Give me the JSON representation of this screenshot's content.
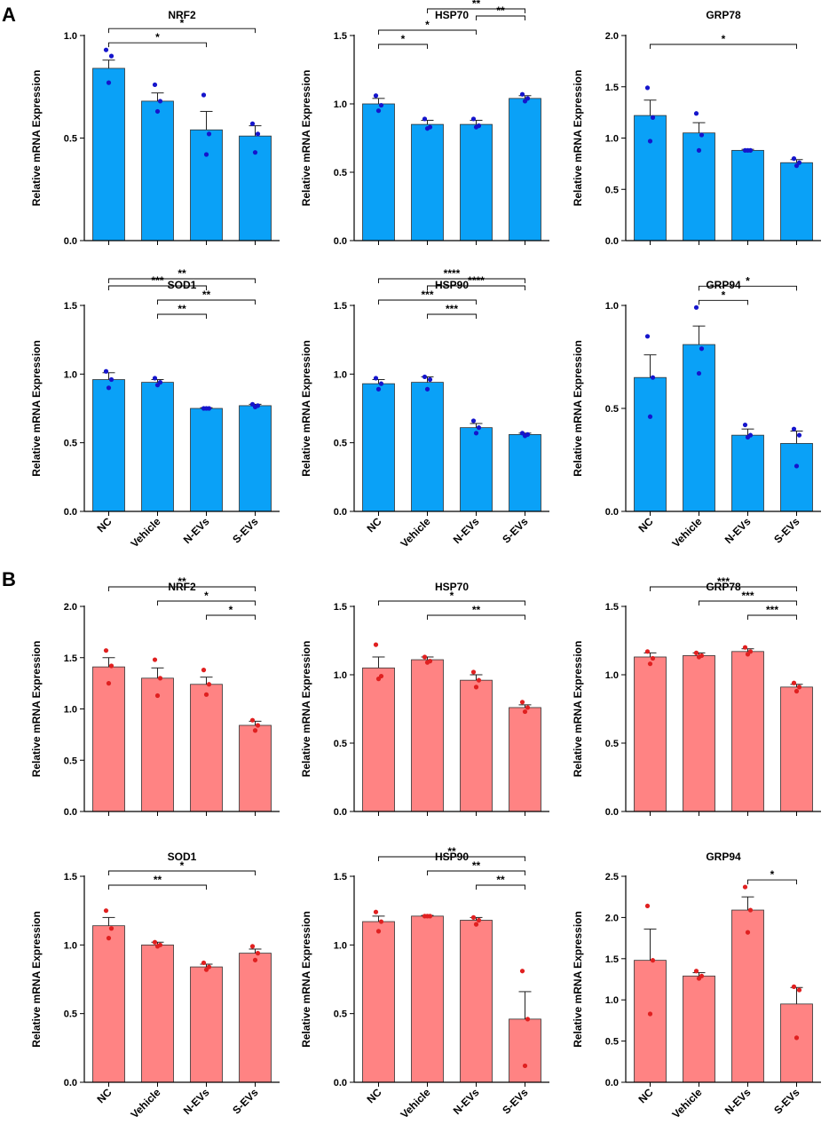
{
  "panel_labels": [
    "A",
    "B"
  ],
  "colors": {
    "A_bar": "#0aa1f7",
    "A_dot": "#1515cc",
    "B_bar": "#ff8383",
    "B_dot": "#e02020",
    "edge": "#333333"
  },
  "chart_data": [
    {
      "panel": "A",
      "type": "bar",
      "title": "NRF2",
      "ylabel": "Relative mRNA Expression",
      "ylim": [
        0,
        1.0
      ],
      "yticks": [
        "0.0",
        "0.5",
        "1.0"
      ],
      "categories": [
        "NC",
        "Vehicle",
        "N-EVs",
        "S-EVs"
      ],
      "show_xlabels": false,
      "values": [
        0.84,
        0.68,
        0.54,
        0.51
      ],
      "errors": [
        0.04,
        0.04,
        0.09,
        0.05
      ],
      "points": [
        [
          0.93,
          0.9,
          0.77
        ],
        [
          0.76,
          0.68,
          0.63
        ],
        [
          0.71,
          0.52,
          0.42
        ],
        [
          0.57,
          0.52,
          0.43
        ]
      ],
      "sig": [
        {
          "a": 0,
          "b": 2,
          "label": "*"
        },
        {
          "a": 0,
          "b": 3,
          "label": "*"
        }
      ]
    },
    {
      "panel": "A",
      "type": "bar",
      "title": "HSP70",
      "ylabel": "Relative mRNA Expression",
      "ylim": [
        0,
        1.5
      ],
      "yticks": [
        "0.0",
        "0.5",
        "1.0",
        "1.5"
      ],
      "categories": [
        "NC",
        "Vehicle",
        "N-EVs",
        "S-EVs"
      ],
      "show_xlabels": false,
      "values": [
        1.0,
        0.85,
        0.85,
        1.04
      ],
      "errors": [
        0.04,
        0.03,
        0.03,
        0.02
      ],
      "points": [
        [
          1.06,
          0.99,
          0.95
        ],
        [
          0.89,
          0.83,
          0.82
        ],
        [
          0.89,
          0.84,
          0.83
        ],
        [
          1.07,
          1.04,
          1.02
        ]
      ],
      "sig": [
        {
          "a": 0,
          "b": 1,
          "label": "*"
        },
        {
          "a": 0,
          "b": 2,
          "label": "*"
        },
        {
          "a": 2,
          "b": 3,
          "label": "**"
        },
        {
          "a": 1,
          "b": 3,
          "label": "**"
        }
      ]
    },
    {
      "panel": "A",
      "type": "bar",
      "title": "GRP78",
      "ylabel": "Relative mRNA Expression",
      "ylim": [
        0,
        2.0
      ],
      "yticks": [
        "0.0",
        "0.5",
        "1.0",
        "1.5",
        "2.0"
      ],
      "categories": [
        "NC",
        "Vehicle",
        "N-EVs",
        "S-EVs"
      ],
      "show_xlabels": false,
      "values": [
        1.22,
        1.05,
        0.88,
        0.76
      ],
      "errors": [
        0.15,
        0.1,
        0.01,
        0.03
      ],
      "points": [
        [
          1.49,
          1.2,
          0.97
        ],
        [
          1.24,
          1.03,
          0.88
        ],
        [
          0.88,
          0.88,
          0.88
        ],
        [
          0.8,
          0.76,
          0.73
        ]
      ],
      "sig": [
        {
          "a": 0,
          "b": 3,
          "label": "*"
        }
      ]
    },
    {
      "panel": "A",
      "type": "bar",
      "title": "SOD1",
      "ylabel": "Relative mRNA Expression",
      "ylim": [
        0,
        1.5
      ],
      "yticks": [
        "0.0",
        "0.5",
        "1.0",
        "1.5"
      ],
      "categories": [
        "NC",
        "Vehicle",
        "N-EVs",
        "S-EVs"
      ],
      "show_xlabels": true,
      "values": [
        0.96,
        0.94,
        0.75,
        0.77
      ],
      "errors": [
        0.05,
        0.02,
        0.005,
        0.01
      ],
      "points": [
        [
          1.02,
          0.96,
          0.9
        ],
        [
          0.97,
          0.94,
          0.92
        ],
        [
          0.75,
          0.75,
          0.75
        ],
        [
          0.78,
          0.77,
          0.76
        ]
      ],
      "sig": [
        {
          "a": 1,
          "b": 2,
          "label": "**"
        },
        {
          "a": 1,
          "b": 3,
          "label": "**"
        },
        {
          "a": 0,
          "b": 2,
          "label": "***"
        },
        {
          "a": 0,
          "b": 3,
          "label": "**"
        }
      ]
    },
    {
      "panel": "A",
      "type": "bar",
      "title": "HSP90",
      "ylabel": "Relative mRNA Expression",
      "ylim": [
        0,
        1.5
      ],
      "yticks": [
        "0.0",
        "0.5",
        "1.0",
        "1.5"
      ],
      "categories": [
        "NC",
        "Vehicle",
        "N-EVs",
        "S-EVs"
      ],
      "show_xlabels": true,
      "values": [
        0.93,
        0.94,
        0.61,
        0.56
      ],
      "errors": [
        0.03,
        0.04,
        0.03,
        0.01
      ],
      "points": [
        [
          0.97,
          0.93,
          0.89
        ],
        [
          0.98,
          0.96,
          0.89
        ],
        [
          0.66,
          0.61,
          0.57
        ],
        [
          0.57,
          0.56,
          0.55
        ]
      ],
      "sig": [
        {
          "a": 1,
          "b": 2,
          "label": "***"
        },
        {
          "a": 0,
          "b": 2,
          "label": "***"
        },
        {
          "a": 1,
          "b": 3,
          "label": "****"
        },
        {
          "a": 0,
          "b": 3,
          "label": "****"
        }
      ]
    },
    {
      "panel": "A",
      "type": "bar",
      "title": "GRP94",
      "ylabel": "Relative mRNA Expression",
      "ylim": [
        0,
        1.0
      ],
      "yticks": [
        "0.0",
        "0.5",
        "1.0"
      ],
      "categories": [
        "NC",
        "Vehicle",
        "N-EVs",
        "S-EVs"
      ],
      "show_xlabels": true,
      "values": [
        0.65,
        0.81,
        0.37,
        0.33
      ],
      "errors": [
        0.11,
        0.09,
        0.03,
        0.06
      ],
      "points": [
        [
          0.85,
          0.65,
          0.46
        ],
        [
          0.99,
          0.79,
          0.67
        ],
        [
          0.42,
          0.37,
          0.36
        ],
        [
          0.4,
          0.37,
          0.22
        ]
      ],
      "sig": [
        {
          "a": 1,
          "b": 2,
          "label": "*"
        },
        {
          "a": 1,
          "b": 3,
          "label": "*"
        }
      ]
    },
    {
      "panel": "B",
      "type": "bar",
      "title": "NRF2",
      "ylabel": "Relative mRNA Expression",
      "ylim": [
        0,
        2.0
      ],
      "yticks": [
        "0.0",
        "0.5",
        "1.0",
        "1.5",
        "2.0"
      ],
      "categories": [
        "NC",
        "Vehicle",
        "N-EVs",
        "S-EVs"
      ],
      "show_xlabels": false,
      "values": [
        1.41,
        1.3,
        1.24,
        0.84
      ],
      "errors": [
        0.09,
        0.1,
        0.07,
        0.04
      ],
      "points": [
        [
          1.57,
          1.42,
          1.25
        ],
        [
          1.48,
          1.3,
          1.13
        ],
        [
          1.38,
          1.24,
          1.14
        ],
        [
          0.89,
          0.84,
          0.79
        ]
      ],
      "sig": [
        {
          "a": 2,
          "b": 3,
          "label": "*"
        },
        {
          "a": 1,
          "b": 3,
          "label": "*"
        },
        {
          "a": 0,
          "b": 3,
          "label": "**"
        }
      ]
    },
    {
      "panel": "B",
      "type": "bar",
      "title": "HSP70",
      "ylabel": "Relative mRNA Expression",
      "ylim": [
        0,
        1.5
      ],
      "yticks": [
        "0.0",
        "0.5",
        "1.0",
        "1.5"
      ],
      "categories": [
        "NC",
        "Vehicle",
        "N-EVs",
        "S-EVs"
      ],
      "show_xlabels": false,
      "values": [
        1.05,
        1.11,
        0.96,
        0.76
      ],
      "errors": [
        0.08,
        0.02,
        0.04,
        0.02
      ],
      "points": [
        [
          1.22,
          0.99,
          0.97
        ],
        [
          1.13,
          1.1,
          1.09
        ],
        [
          1.02,
          0.96,
          0.91
        ],
        [
          0.8,
          0.76,
          0.73
        ]
      ],
      "sig": [
        {
          "a": 1,
          "b": 3,
          "label": "**"
        },
        {
          "a": 0,
          "b": 3,
          "label": "*"
        }
      ]
    },
    {
      "panel": "B",
      "type": "bar",
      "title": "GRP78",
      "ylabel": "Relative mRNA Expression",
      "ylim": [
        0,
        1.5
      ],
      "yticks": [
        "0.0",
        "0.5",
        "1.0",
        "1.5"
      ],
      "categories": [
        "NC",
        "Vehicle",
        "N-EVs",
        "S-EVs"
      ],
      "show_xlabels": false,
      "values": [
        1.13,
        1.14,
        1.17,
        0.91
      ],
      "errors": [
        0.03,
        0.02,
        0.02,
        0.02
      ],
      "points": [
        [
          1.17,
          1.12,
          1.08
        ],
        [
          1.16,
          1.14,
          1.13
        ],
        [
          1.2,
          1.17,
          1.15
        ],
        [
          0.94,
          0.91,
          0.88
        ]
      ],
      "sig": [
        {
          "a": 2,
          "b": 3,
          "label": "***"
        },
        {
          "a": 1,
          "b": 3,
          "label": "***"
        },
        {
          "a": 0,
          "b": 3,
          "label": "***"
        }
      ]
    },
    {
      "panel": "B",
      "type": "bar",
      "title": "SOD1",
      "ylabel": "Relative mRNA Expression",
      "ylim": [
        0,
        1.5
      ],
      "yticks": [
        "0.0",
        "0.5",
        "1.0",
        "1.5"
      ],
      "categories": [
        "NC",
        "Vehicle",
        "N-EVs",
        "S-EVs"
      ],
      "show_xlabels": true,
      "values": [
        1.14,
        1.0,
        0.84,
        0.94
      ],
      "errors": [
        0.06,
        0.02,
        0.02,
        0.03
      ],
      "points": [
        [
          1.25,
          1.12,
          1.05
        ],
        [
          1.02,
          1.0,
          0.99
        ],
        [
          0.87,
          0.84,
          0.82
        ],
        [
          0.99,
          0.94,
          0.89
        ]
      ],
      "sig": [
        {
          "a": 0,
          "b": 2,
          "label": "**"
        },
        {
          "a": 0,
          "b": 3,
          "label": "*"
        }
      ]
    },
    {
      "panel": "B",
      "type": "bar",
      "title": "HSP90",
      "ylabel": "Relative mRNA Expression",
      "ylim": [
        0,
        1.5
      ],
      "yticks": [
        "0.0",
        "0.5",
        "1.0",
        "1.5"
      ],
      "categories": [
        "NC",
        "Vehicle",
        "N-EVs",
        "S-EVs"
      ],
      "show_xlabels": true,
      "values": [
        1.17,
        1.21,
        1.18,
        0.46
      ],
      "errors": [
        0.04,
        0.005,
        0.02,
        0.2
      ],
      "points": [
        [
          1.24,
          1.17,
          1.1
        ],
        [
          1.21,
          1.21,
          1.21
        ],
        [
          1.2,
          1.18,
          1.15
        ],
        [
          0.81,
          0.46,
          0.12
        ]
      ],
      "sig": [
        {
          "a": 2,
          "b": 3,
          "label": "**"
        },
        {
          "a": 1,
          "b": 3,
          "label": "**"
        },
        {
          "a": 0,
          "b": 3,
          "label": "**"
        }
      ]
    },
    {
      "panel": "B",
      "type": "bar",
      "title": "GRP94",
      "ylabel": "Relative mRNA Expression",
      "ylim": [
        0,
        2.5
      ],
      "yticks": [
        "0.0",
        "0.5",
        "1.0",
        "1.5",
        "2.0",
        "2.5"
      ],
      "categories": [
        "NC",
        "Vehicle",
        "N-EVs",
        "S-EVs"
      ],
      "show_xlabels": true,
      "values": [
        1.48,
        1.29,
        2.09,
        0.95
      ],
      "errors": [
        0.38,
        0.04,
        0.16,
        0.2
      ],
      "points": [
        [
          2.14,
          1.48,
          0.83
        ],
        [
          1.35,
          1.29,
          1.26
        ],
        [
          2.37,
          2.09,
          1.82
        ],
        [
          1.16,
          1.12,
          0.54
        ]
      ],
      "sig": [
        {
          "a": 2,
          "b": 3,
          "label": "*"
        }
      ]
    }
  ]
}
